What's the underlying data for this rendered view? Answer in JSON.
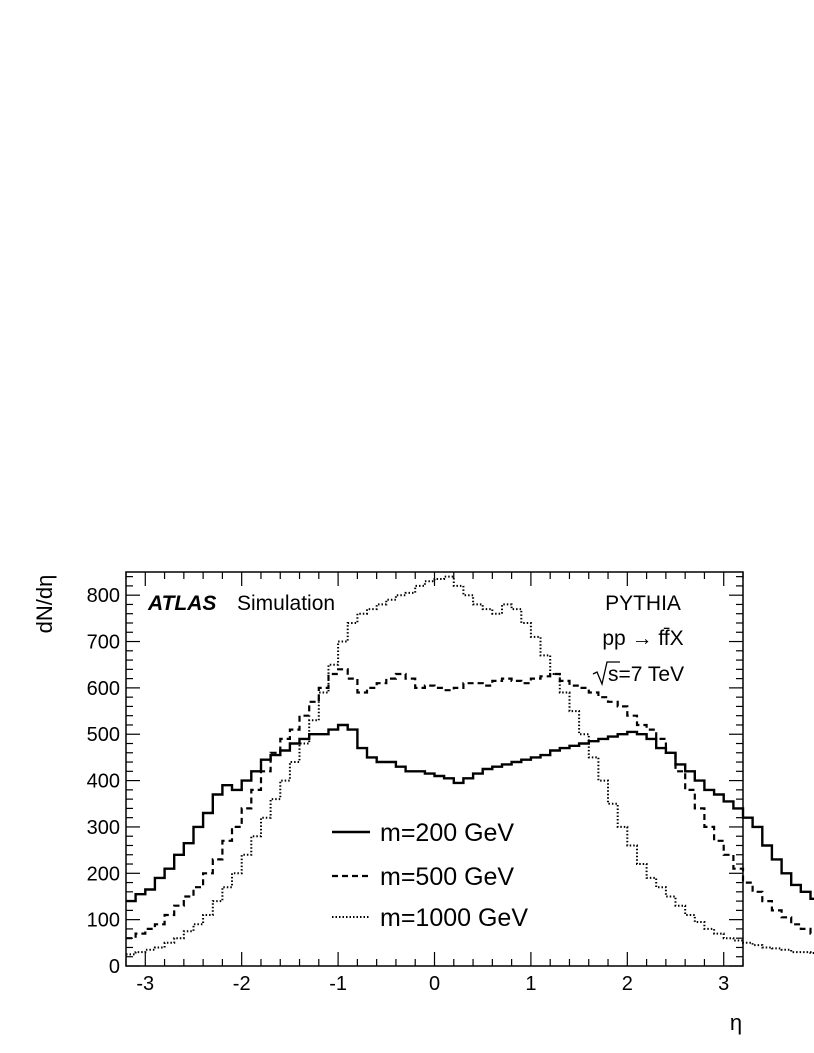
{
  "chart_data": {
    "type": "line",
    "style": "step-histogram",
    "title": "",
    "xlabel": "η",
    "ylabel": "dN/dη",
    "xlim": [
      -3.2,
      3.2
    ],
    "ylim": [
      0,
      850
    ],
    "grid": false,
    "legend_position": "bottom-center",
    "x_ticks": [
      "-3",
      "-2",
      "-1",
      "0",
      "1",
      "2",
      "3"
    ],
    "y_ticks": [
      "0",
      "100",
      "200",
      "300",
      "400",
      "500",
      "600",
      "700",
      "800"
    ],
    "bin_edges_start": -3.2,
    "bin_width": 0.1,
    "series": [
      {
        "name": "m=200 GeV",
        "line_style": "solid",
        "values": [
          140,
          155,
          165,
          190,
          210,
          240,
          265,
          300,
          330,
          370,
          390,
          380,
          400,
          420,
          445,
          455,
          465,
          480,
          490,
          500,
          500,
          510,
          520,
          510,
          470,
          450,
          440,
          440,
          430,
          420,
          420,
          415,
          410,
          405,
          395,
          405,
          415,
          425,
          430,
          435,
          440,
          445,
          450,
          455,
          465,
          470,
          475,
          480,
          485,
          490,
          495,
          500,
          505,
          500,
          490,
          470,
          460,
          435,
          420,
          400,
          380,
          370,
          355,
          340,
          320,
          300,
          260,
          230,
          200,
          175,
          160,
          145,
          135,
          125,
          120
        ]
      },
      {
        "name": "m=500 GeV",
        "line_style": "dashed",
        "values": [
          60,
          70,
          80,
          90,
          110,
          130,
          150,
          170,
          200,
          230,
          270,
          300,
          340,
          380,
          420,
          460,
          490,
          510,
          540,
          570,
          600,
          630,
          640,
          620,
          590,
          600,
          610,
          620,
          630,
          620,
          600,
          605,
          600,
          595,
          600,
          610,
          610,
          605,
          615,
          620,
          615,
          610,
          620,
          625,
          630,
          615,
          605,
          600,
          590,
          580,
          570,
          560,
          540,
          520,
          510,
          490,
          460,
          420,
          380,
          340,
          300,
          270,
          240,
          210,
          180,
          160,
          140,
          120,
          105,
          90,
          80,
          70,
          60,
          55,
          50
        ]
      },
      {
        "name": "m=1000 GeV",
        "line_style": "dotted",
        "values": [
          25,
          30,
          35,
          40,
          50,
          60,
          75,
          90,
          110,
          140,
          170,
          200,
          240,
          280,
          320,
          360,
          400,
          440,
          480,
          530,
          590,
          650,
          700,
          740,
          760,
          770,
          780,
          790,
          800,
          805,
          820,
          830,
          835,
          840,
          820,
          800,
          780,
          770,
          760,
          780,
          770,
          740,
          710,
          670,
          630,
          590,
          550,
          500,
          450,
          400,
          350,
          300,
          260,
          220,
          190,
          170,
          150,
          130,
          110,
          95,
          80,
          70,
          60,
          55,
          50,
          45,
          40,
          38,
          35,
          30,
          30,
          28,
          25,
          22,
          20
        ]
      }
    ],
    "annotations": {
      "atlas": "ATLAS",
      "simulation": "Simulation",
      "generator": "PYTHIA",
      "process": "pp → ff̄X",
      "energy": "s=7 TeV"
    }
  }
}
